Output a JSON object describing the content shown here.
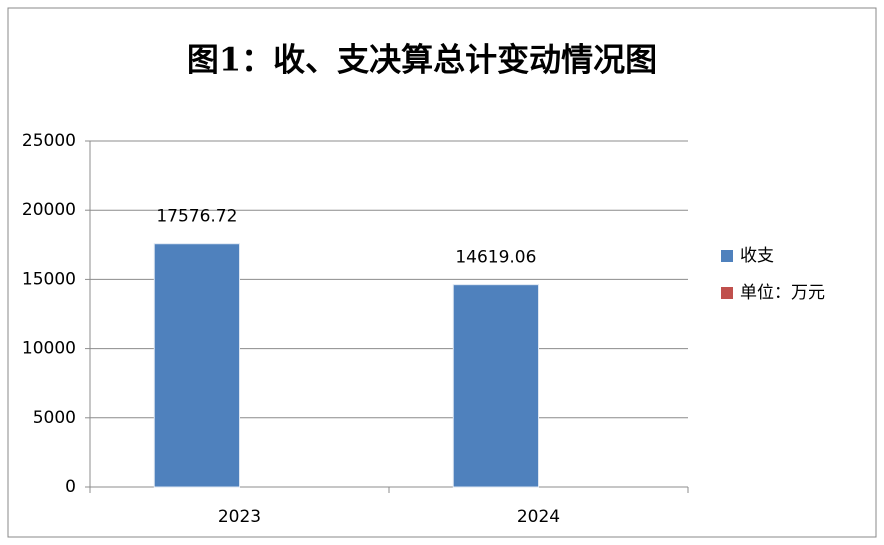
{
  "chart_data": {
    "type": "bar",
    "title": "图1：收、支决算总计变动情况图",
    "categories": [
      "2023",
      "2024"
    ],
    "series": [
      {
        "name": "收支",
        "color": "#4f81bd",
        "values": [
          17576.72,
          14619.06
        ]
      },
      {
        "name": "单位：万元",
        "color": "#c0504d",
        "values": [
          null,
          null
        ]
      }
    ],
    "ylim": [
      0,
      25000
    ],
    "yticks": [
      0,
      5000,
      10000,
      15000,
      20000,
      25000
    ],
    "grid": true,
    "legend": "right"
  }
}
